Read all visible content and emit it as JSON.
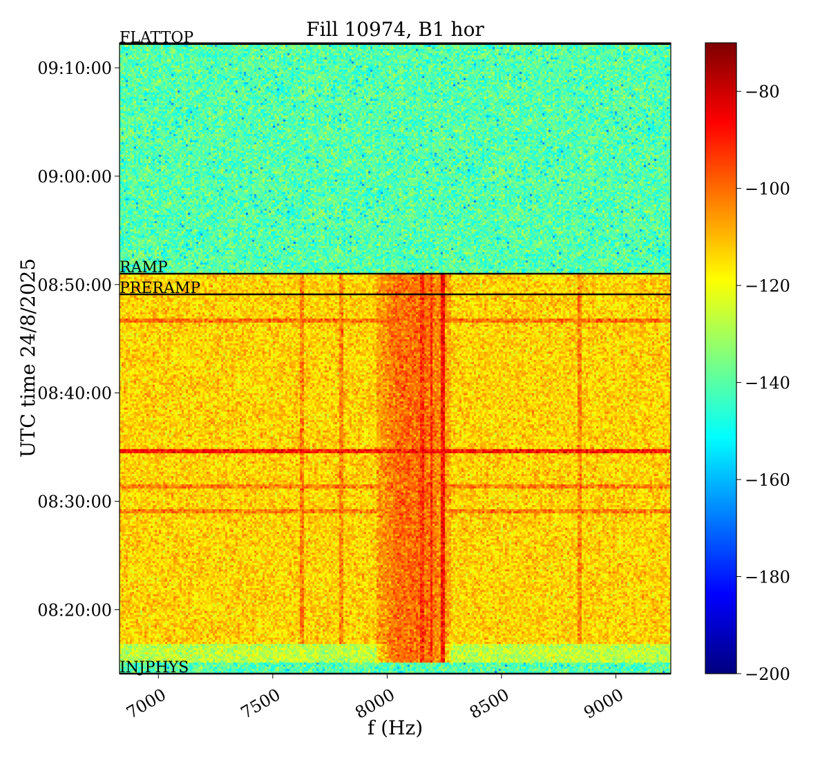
{
  "chart_data": {
    "type": "heatmap",
    "title": "Fill 10974, B1 hor",
    "xlabel": "f (Hz)",
    "ylabel": "UTC time 24/8/2025",
    "xlim": [
      6830,
      9240
    ],
    "ylim_minutes": [
      494.1,
      552.3
    ],
    "x_ticks": [
      {
        "value": 7000,
        "label": "7000"
      },
      {
        "value": 7500,
        "label": "7500"
      },
      {
        "value": 8000,
        "label": "8000"
      },
      {
        "value": 8500,
        "label": "8500"
      },
      {
        "value": 9000,
        "label": "9000"
      }
    ],
    "y_ticks": [
      {
        "value": 500,
        "label": "08:20:00"
      },
      {
        "value": 510,
        "label": "08:30:00"
      },
      {
        "value": 520,
        "label": "08:40:00"
      },
      {
        "value": 530,
        "label": "08:50:00"
      },
      {
        "value": 540,
        "label": "09:00:00"
      },
      {
        "value": 550,
        "label": "09:10:00"
      }
    ],
    "phases": [
      {
        "name": "INJPHYS",
        "time": 494.1
      },
      {
        "name": "PRERAMP",
        "time": 529.1
      },
      {
        "name": "RAMP",
        "time": 531.0
      },
      {
        "name": "FLATTOP",
        "time": 552.2
      }
    ],
    "colorbar": {
      "colormap": "jet",
      "range": [
        -200,
        -70
      ],
      "ticks": [
        {
          "value": -80,
          "label": "−80"
        },
        {
          "value": -100,
          "label": "−100"
        },
        {
          "value": -120,
          "label": "−120"
        },
        {
          "value": -140,
          "label": "−140"
        },
        {
          "value": -160,
          "label": "−160"
        },
        {
          "value": -180,
          "label": "−180"
        },
        {
          "value": -200,
          "label": "−200"
        }
      ]
    },
    "level_regions": [
      {
        "time_from": 531.0,
        "time_to": 552.3,
        "level_db": -140
      },
      {
        "time_from": 496.8,
        "time_to": 531.0,
        "level_db": -113
      },
      {
        "time_from": 495.0,
        "time_to": 496.8,
        "level_db": -127
      },
      {
        "time_from": 494.1,
        "time_to": 495.0,
        "level_db": -140
      }
    ],
    "lines": [
      {
        "orientation": "vertical",
        "freq": 8155,
        "time_from": 495.0,
        "time_to": 531.0,
        "level_db": -93
      },
      {
        "orientation": "vertical",
        "freq": 8195,
        "time_from": 495.0,
        "time_to": 531.0,
        "level_db": -91
      },
      {
        "orientation": "vertical",
        "freq": 8245,
        "time_from": 495.0,
        "time_to": 531.0,
        "level_db": -88
      },
      {
        "orientation": "vertical",
        "freq": 7630,
        "time_from": 496.8,
        "time_to": 531.0,
        "level_db": -102
      },
      {
        "orientation": "vertical",
        "freq": 7800,
        "time_from": 496.8,
        "time_to": 531.0,
        "level_db": -103
      },
      {
        "orientation": "vertical",
        "freq": 8840,
        "time_from": 496.8,
        "time_to": 531.0,
        "level_db": -103
      },
      {
        "orientation": "horizontal",
        "time": 514.6,
        "level_db": -88
      },
      {
        "orientation": "horizontal",
        "time": 526.6,
        "level_db": -100
      },
      {
        "orientation": "horizontal",
        "time": 511.3,
        "level_db": -102
      },
      {
        "orientation": "horizontal",
        "time": 509.0,
        "level_db": -102
      }
    ],
    "hot_region": {
      "freq_from": 7950,
      "freq_to": 8280,
      "time_from": 495.0,
      "time_to": 531.0,
      "level_db": -100
    },
    "grid": false
  }
}
